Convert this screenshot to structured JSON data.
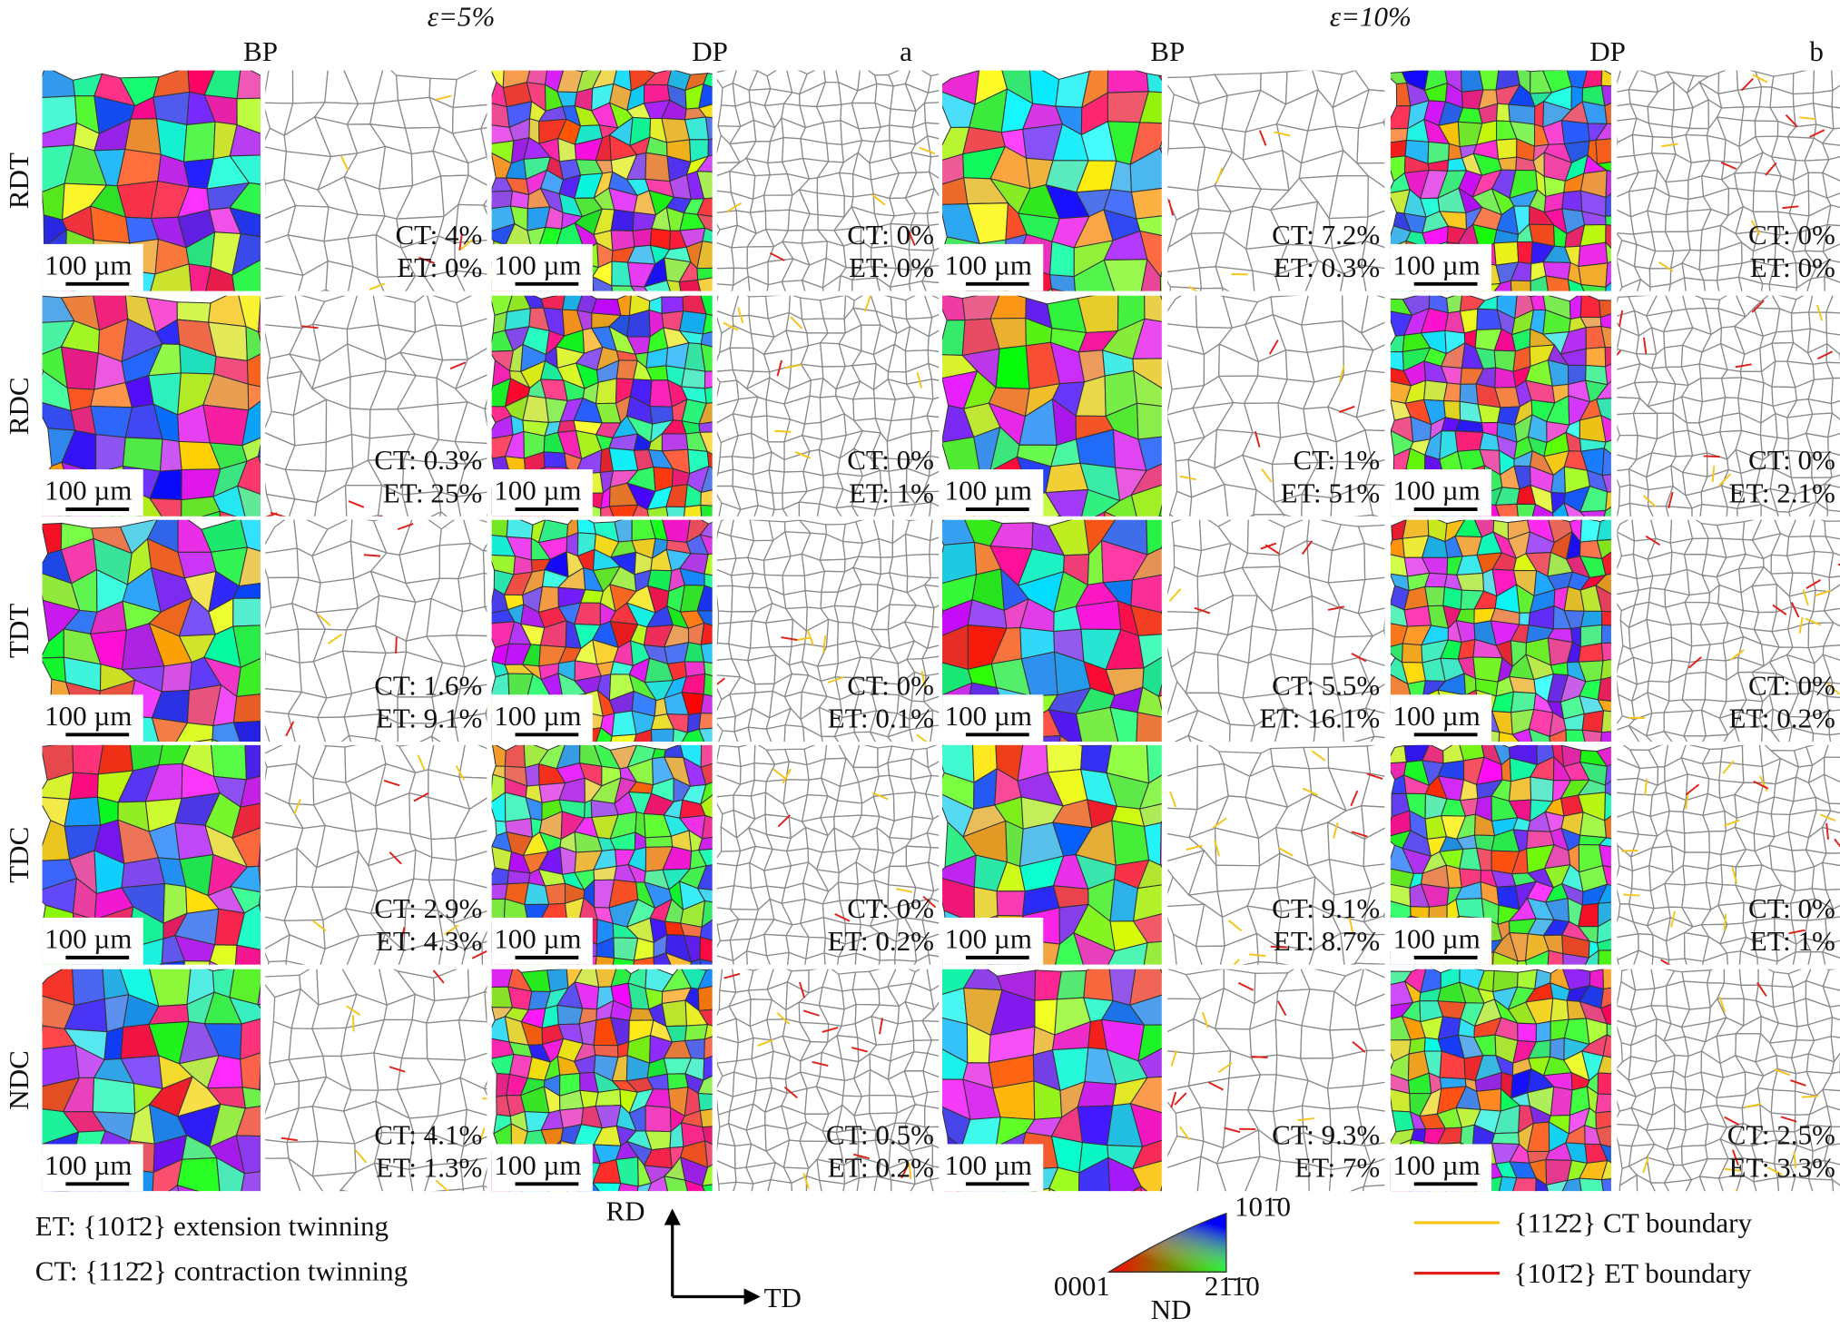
{
  "headers": {
    "strain_left": "ε=5%",
    "strain_right": "ε=10%",
    "col_left_1": "BP",
    "col_left_2": "DP",
    "panel_left": "a",
    "col_right_1": "BP",
    "col_right_2": "DP",
    "panel_right": "b"
  },
  "rows": [
    "RDT",
    "RDC",
    "TDT",
    "TDC",
    "NDC"
  ],
  "panels": [
    [
      {
        "ct": "CT: 4%",
        "et": "ET: 0%"
      },
      {
        "ct": "CT: 0%",
        "et": "ET: 0%"
      },
      {
        "ct": "CT: 7.2%",
        "et": "ET: 0.3%"
      },
      {
        "ct": "CT: 0%",
        "et": "ET: 0%"
      }
    ],
    [
      {
        "ct": "CT: 0.3%",
        "et": "ET: 25%"
      },
      {
        "ct": "CT: 0%",
        "et": "ET: 1%"
      },
      {
        "ct": "CT: 1%",
        "et": "ET: 51%"
      },
      {
        "ct": "CT: 0%",
        "et": "ET: 2.1%"
      }
    ],
    [
      {
        "ct": "CT: 1.6%",
        "et": "ET: 9.1%"
      },
      {
        "ct": "CT: 0%",
        "et": "ET: 0.1%"
      },
      {
        "ct": "CT: 5.5%",
        "et": "ET: 16.1%"
      },
      {
        "ct": "CT: 0%",
        "et": "ET: 0.2%"
      }
    ],
    [
      {
        "ct": "CT: 2.9%",
        "et": "ET: 4.3%"
      },
      {
        "ct": "CT: 0%",
        "et": "ET: 0.2%"
      },
      {
        "ct": "CT: 9.1%",
        "et": "ET: 8.7%"
      },
      {
        "ct": "CT: 0%",
        "et": "ET: 1%"
      }
    ],
    [
      {
        "ct": "CT: 4.1%",
        "et": "ET: 1.3%"
      },
      {
        "ct": "CT: 0.5%",
        "et": "ET: 0.2%"
      },
      {
        "ct": "CT: 9.3%",
        "et": "ET: 7%"
      },
      {
        "ct": "CT: 2.5%",
        "et": "ET: 3.3%"
      }
    ]
  ],
  "scale_bar": "100 µm",
  "notes": {
    "et": "ET: {101̄2}  extension twinning",
    "ct": "CT: {112̄2}  contraction twinning"
  },
  "axes": {
    "vertical": "RD",
    "horizontal": "TD"
  },
  "ipf": {
    "bottom_left": "0001",
    "top_right": "101̄0",
    "bottom_right": "21̄1̄0",
    "label": "ND"
  },
  "legend": [
    {
      "label": "{112̄2} CT boundary",
      "color": "#f5c518"
    },
    {
      "label": "{101̄2} ET boundary",
      "color": "#e0201b"
    }
  ]
}
